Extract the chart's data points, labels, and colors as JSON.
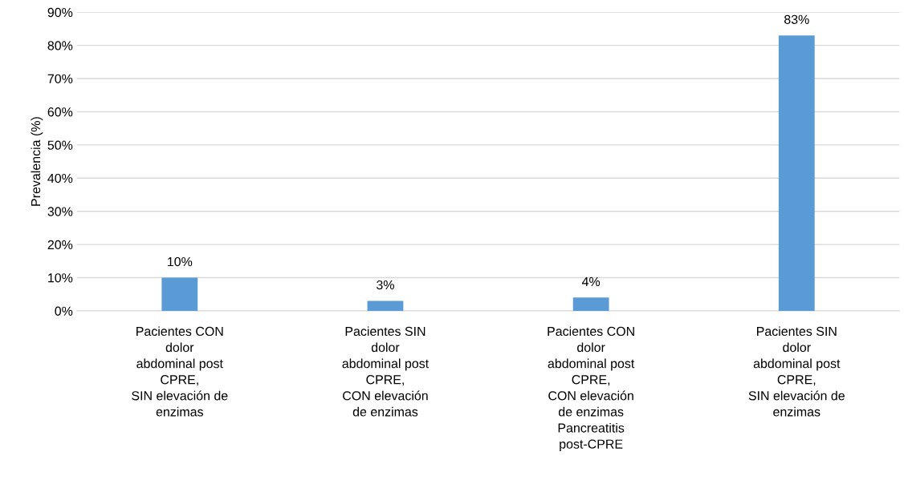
{
  "chart_data": {
    "type": "bar",
    "ylabel": "Prevalencia (%)",
    "categories": [
      "Pacientes CON\ndolor\nabdominal post\nCPRE,\nSIN elevación de\nenzimas",
      "Pacientes SIN\ndolor\nabdominal post\nCPRE,\nCON elevación\nde enzimas",
      "Pacientes CON\ndolor\nabdominal post\nCPRE,\nCON elevación\nde enzimas\nPancreatitis\npost-CPRE",
      "Pacientes SIN\ndolor\nabdominal post\nCPRE,\nSIN elevación de\nenzimas"
    ],
    "values": [
      10,
      3,
      4,
      83
    ],
    "value_labels": [
      "10%",
      "3%",
      "4%",
      "83%"
    ],
    "color": "#5b9bd5",
    "ylim": [
      0,
      90
    ],
    "yticks": [
      {
        "value": 0,
        "label": "0%"
      },
      {
        "value": 10,
        "label": "10%"
      },
      {
        "value": 20,
        "label": "20%"
      },
      {
        "value": 30,
        "label": "30%"
      },
      {
        "value": 40,
        "label": "40%"
      },
      {
        "value": 50,
        "label": "50%"
      },
      {
        "value": 60,
        "label": "60%"
      },
      {
        "value": 70,
        "label": "70%"
      },
      {
        "value": 80,
        "label": "80%"
      },
      {
        "value": 90,
        "label": "90%"
      }
    ],
    "grid": "y"
  }
}
